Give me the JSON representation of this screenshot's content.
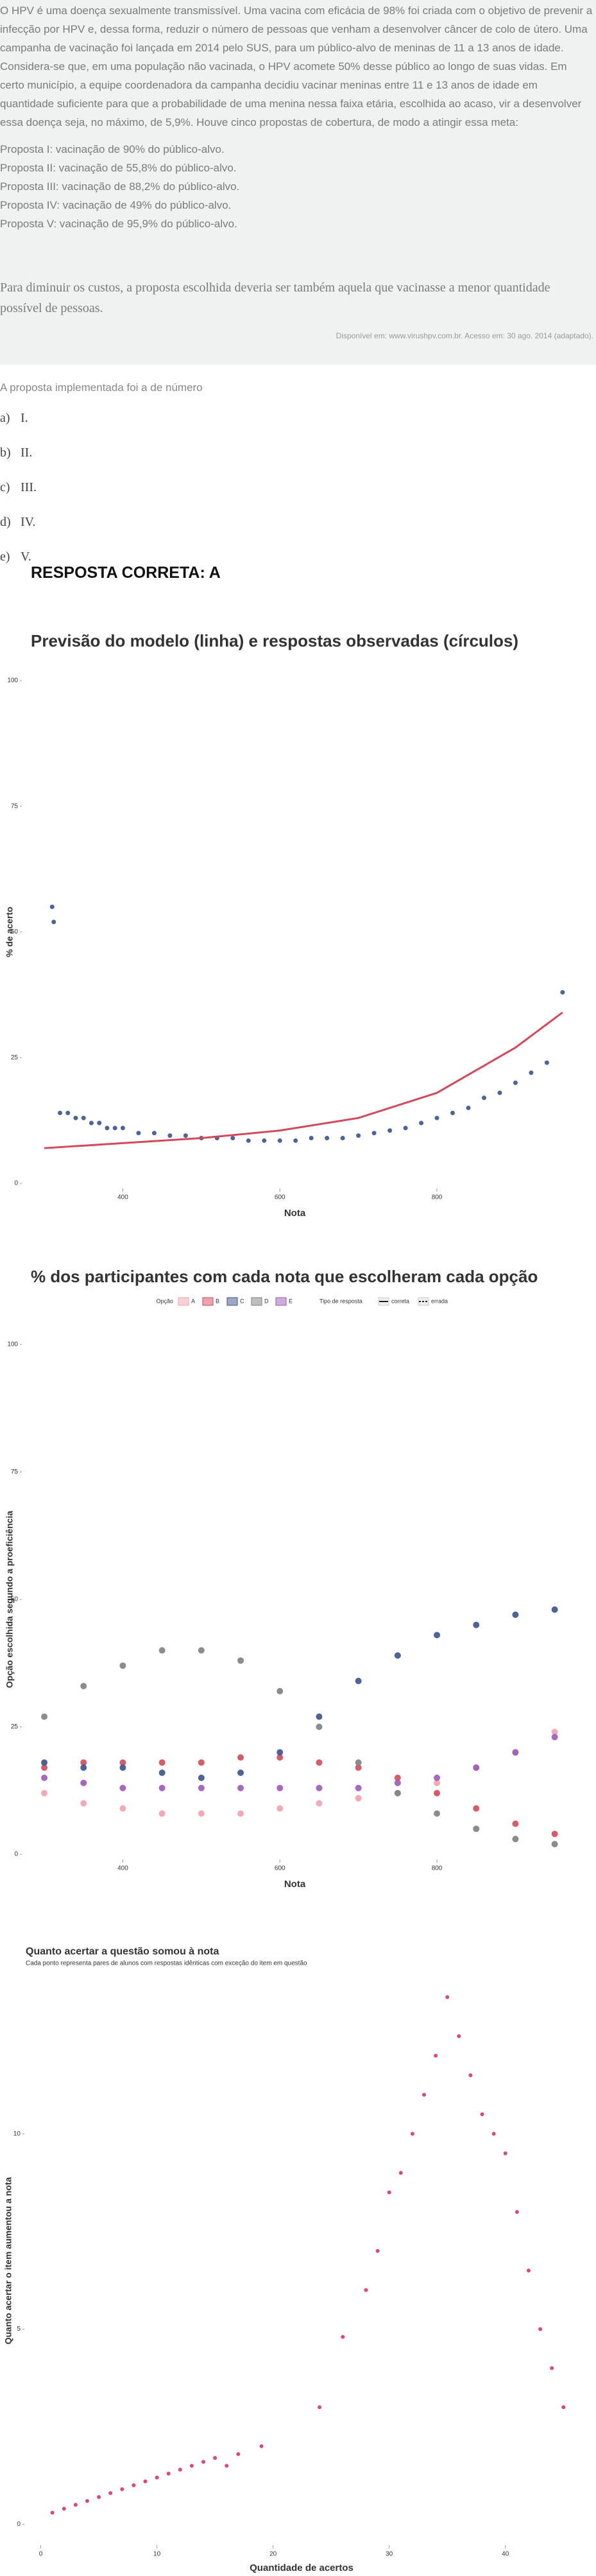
{
  "question": {
    "text": "O HPV é uma doença sexualmente transmissível. Uma vacina com eficácia de 98% foi criada com o objetivo de prevenir a infecção por HPV e, dessa forma, reduzir o número de pessoas que venham a desenvolver câncer de colo de útero. Uma campanha de vacinação foi lançada em 2014 pelo SUS, para um público-alvo de meninas de 11 a 13 anos de idade. Considera-se que, em uma população não vacinada, o HPV acomete 50% desse público ao longo de suas vidas. Em certo município, a equipe coordenadora da campanha decidiu vacinar meninas entre 11 e 13 anos de idade em quantidade suficiente para que a probabilidade de uma menina nessa faixa etária, escolhida ao acaso, vir a desenvolver essa doença seja, no máximo, de 5,9%. Houve cinco propostas de cobertura, de modo a atingir essa meta:",
    "proposals": [
      "Proposta I: vacinação de 90% do público-alvo.",
      "Proposta II: vacinação de 55,8% do público-alvo.",
      "Proposta III: vacinação de 88,2% do público-alvo.",
      "Proposta IV: vacinação de 49% do público-alvo.",
      "Proposta V: vacinação de 95,9% do público-alvo."
    ],
    "note": "Para diminuir os custos, a proposta escolhida deveria ser também aquela que vacinasse a menor quantidade possível de pessoas.",
    "source": "Disponível em: www.virushpv.com.br. Acesso em: 30 ago. 2014 (adaptado).",
    "prompt": "A proposta implementada foi a de número",
    "options": [
      {
        "letter": "a)",
        "text": "I."
      },
      {
        "letter": "b)",
        "text": "II."
      },
      {
        "letter": "c)",
        "text": "III."
      },
      {
        "letter": "d)",
        "text": "IV."
      },
      {
        "letter": "e)",
        "text": "V."
      }
    ],
    "answer": "RESPOSTA CORRETA: A"
  },
  "chart_data": [
    {
      "type": "scatter",
      "title": "Previsão do modelo (linha) e respostas observadas (círculos)",
      "xlabel": "Nota",
      "ylabel": "% de acerto",
      "xlim": [
        273,
        965
      ],
      "ylim": [
        0,
        100
      ],
      "xticks": [
        400,
        600,
        800
      ],
      "yticks": [
        0,
        25,
        50,
        75,
        100
      ],
      "grid": false,
      "series": [
        {
          "color": "#3b528b",
          "x": [
            310,
            312,
            320,
            330,
            340,
            350,
            360,
            370,
            380,
            390,
            400,
            420,
            440,
            460,
            480,
            500,
            520,
            540,
            560,
            580,
            600,
            620,
            640,
            660,
            680,
            700,
            720,
            740,
            760,
            780,
            800,
            820,
            840,
            860,
            880,
            900,
            920,
            940,
            960
          ],
          "values": [
            55,
            52,
            14,
            14,
            13,
            13,
            12,
            12,
            11,
            11,
            11,
            10,
            10,
            9.5,
            9.5,
            9,
            9,
            9,
            8.5,
            8.5,
            8.5,
            8.5,
            9,
            9,
            9,
            9.5,
            10,
            10.5,
            11,
            12,
            13,
            14,
            15,
            17,
            18,
            20,
            22,
            24,
            38
          ]
        },
        {
          "color": "#d1495b",
          "mark": "line",
          "x": [
            300,
            400,
            500,
            600,
            700,
            800,
            900,
            960
          ],
          "values": [
            7,
            8,
            9,
            10.5,
            13,
            18,
            27,
            34
          ]
        }
      ]
    },
    {
      "type": "scatter",
      "title": "% dos participantes com cada nota que escolheram cada opção",
      "xlabel": "Nota",
      "ylabel": "Opção escolhida segundo a proeficiência",
      "legend_title": "Opção",
      "legend2": {
        "title": "Tipo de resposta",
        "labels": [
          "correta",
          "errada"
        ]
      },
      "xlim": [
        273,
        965
      ],
      "ylim": [
        0,
        100
      ],
      "xticks": [
        400,
        600,
        800
      ],
      "yticks": [
        0,
        25,
        50,
        75,
        100
      ],
      "grid": false,
      "x": [
        300,
        350,
        400,
        450,
        500,
        550,
        600,
        650,
        700,
        750,
        800,
        850,
        900,
        950
      ],
      "series": [
        {
          "name": "A",
          "color": "#f4a0ae",
          "values": [
            12,
            10,
            9,
            8,
            8,
            8,
            9,
            10,
            11,
            12,
            14,
            17,
            20,
            24
          ]
        },
        {
          "name": "B",
          "color": "#d1495b",
          "values": [
            17,
            18,
            18,
            18,
            18,
            19,
            19,
            18,
            17,
            15,
            12,
            9,
            6,
            4
          ]
        },
        {
          "name": "C",
          "color": "#3b528b",
          "values": [
            18,
            17,
            17,
            16,
            15,
            16,
            20,
            27,
            34,
            39,
            43,
            45,
            47,
            48
          ]
        },
        {
          "name": "D",
          "color": "#7f7f7f",
          "values": [
            27,
            33,
            37,
            40,
            40,
            38,
            32,
            25,
            18,
            12,
            8,
            5,
            3,
            2
          ]
        },
        {
          "name": "E",
          "color": "#9b59b6",
          "values": [
            15,
            14,
            13,
            13,
            13,
            13,
            13,
            13,
            13,
            14,
            15,
            17,
            20,
            23
          ]
        }
      ]
    },
    {
      "type": "scatter",
      "title": "Quanto acertar a questão somou à nota",
      "subtitle": "Cada ponto representa pares de alunos com respostas idênticas com exceção do item em questão",
      "xlabel": "Quantidade de acertos",
      "ylabel": "Quanto acertar o item aumentou a nota",
      "xlim": [
        -1.3,
        46.2
      ],
      "ylim": [
        -0.5,
        14
      ],
      "xticks": [
        0,
        10,
        20,
        30,
        40
      ],
      "yticks": [
        0,
        5,
        10
      ],
      "grid": false,
      "series": [
        {
          "color": "#d6336c",
          "x": [
            1,
            2,
            3,
            4,
            5,
            6,
            7,
            8,
            9,
            10,
            11,
            12,
            13,
            14,
            15,
            16,
            17,
            19,
            24,
            26,
            28,
            29,
            30,
            31,
            32,
            33,
            34,
            35,
            36,
            37,
            38,
            39,
            40,
            41,
            42,
            43,
            44,
            45
          ],
          "values": [
            0.3,
            0.4,
            0.5,
            0.6,
            0.7,
            0.8,
            0.9,
            1.0,
            1.1,
            1.2,
            1.3,
            1.4,
            1.5,
            1.6,
            1.7,
            1.5,
            1.8,
            2.0,
            3.0,
            4.8,
            6.0,
            7.0,
            8.5,
            9.0,
            10,
            11,
            12,
            13.5,
            12.5,
            11.5,
            10.5,
            10,
            9.5,
            8,
            6.5,
            5,
            4,
            3
          ]
        }
      ]
    }
  ]
}
